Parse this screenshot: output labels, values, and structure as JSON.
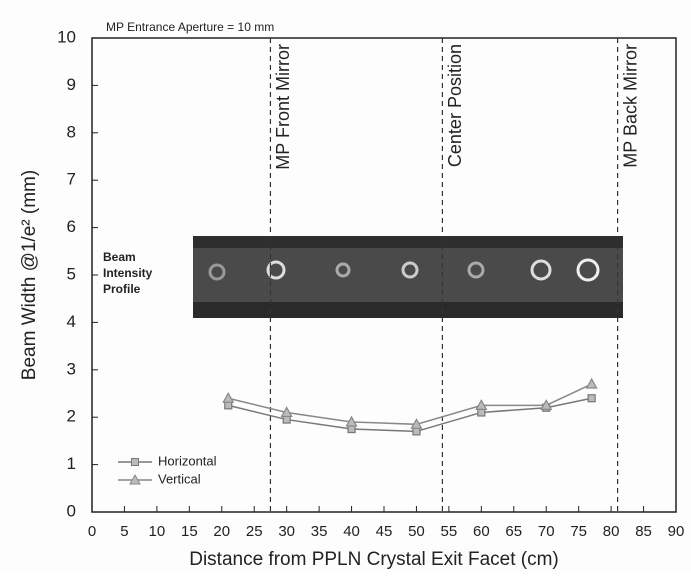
{
  "chart_data": {
    "type": "line",
    "annotation": "MP Entrance Aperture = 10 mm",
    "x_label": "Distance from PPLN Crystal Exit Facet (cm)",
    "y_label": "Beam Width @1/e² (mm)",
    "xlim": [
      0,
      90
    ],
    "xticks": [
      0,
      5,
      10,
      15,
      20,
      25,
      30,
      35,
      40,
      45,
      50,
      55,
      60,
      65,
      70,
      75,
      80,
      85,
      90
    ],
    "ylim": [
      0,
      10
    ],
    "yticks": [
      0,
      1,
      2,
      3,
      4,
      5,
      6,
      7,
      8,
      9,
      10
    ],
    "x": [
      21,
      30,
      40,
      50,
      60,
      70,
      77
    ],
    "series": [
      {
        "name": "Horizontal",
        "color": "#777777",
        "marker": "square",
        "values": [
          2.25,
          1.95,
          1.75,
          1.7,
          2.1,
          2.2,
          2.4
        ]
      },
      {
        "name": "Vertical",
        "color": "#888888",
        "marker": "triangle",
        "values": [
          2.4,
          2.1,
          1.9,
          1.85,
          2.25,
          2.25,
          2.7
        ]
      }
    ],
    "markers": [
      {
        "x": 27.5,
        "label": "MP Front Mirror"
      },
      {
        "x": 54,
        "label": "Center Position"
      },
      {
        "x": 81,
        "label": "MP Back Mirror"
      }
    ],
    "beam_label_lines": [
      "Beam",
      "Intensity",
      "Profile"
    ],
    "legend": "lower left"
  }
}
